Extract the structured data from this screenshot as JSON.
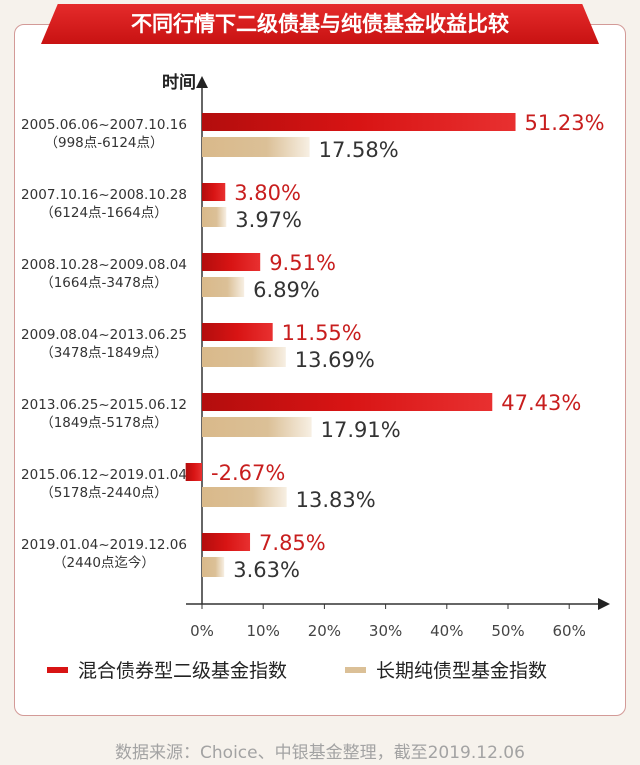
{
  "title": "不同行情下二级债基与纯债基金收益比较",
  "source_note": "数据来源：Choice、中银基金整理，截至2019.12.06",
  "colors": {
    "series1": "#d81414",
    "series2": "#dbc097",
    "label1": "#c81e1e",
    "label2": "#333333",
    "title_bg": "#d91c1c"
  },
  "chart_data": {
    "type": "bar",
    "orientation": "horizontal",
    "ylabel": "时间",
    "categories": [
      [
        "2005.06.06~2007.10.16",
        "（998点-6124点）"
      ],
      [
        "2007.10.16~2008.10.28",
        "（6124点-1664点）"
      ],
      [
        "2008.10.28~2009.08.04",
        "（1664点-3478点）"
      ],
      [
        "2009.08.04~2013.06.25",
        "（3478点-1849点）"
      ],
      [
        "2013.06.25~2015.06.12",
        "（1849点-5178点）"
      ],
      [
        "2015.06.12~2019.01.04",
        "（5178点-2440点）"
      ],
      [
        "2019.01.04~2019.12.06",
        "（2440点迄今）"
      ]
    ],
    "series": [
      {
        "name": "混合债券型二级基金指数",
        "values": [
          51.23,
          3.8,
          9.51,
          11.55,
          47.43,
          -2.67,
          7.85
        ],
        "labels": [
          "51.23%",
          "3.80%",
          "9.51%",
          "11.55%",
          "47.43%",
          "-2.67%",
          "7.85%"
        ]
      },
      {
        "name": "长期纯债型基金指数",
        "values": [
          17.58,
          3.97,
          6.89,
          13.69,
          17.91,
          13.83,
          3.63
        ],
        "labels": [
          "17.58%",
          "3.97%",
          "6.89%",
          "13.69%",
          "17.91%",
          "13.83%",
          "3.63%"
        ]
      }
    ],
    "xticks": [
      "0%",
      "10%",
      "20%",
      "30%",
      "40%",
      "50%",
      "60%"
    ],
    "xlim": [
      0,
      60
    ],
    "legend_position": "bottom",
    "grid": false
  }
}
